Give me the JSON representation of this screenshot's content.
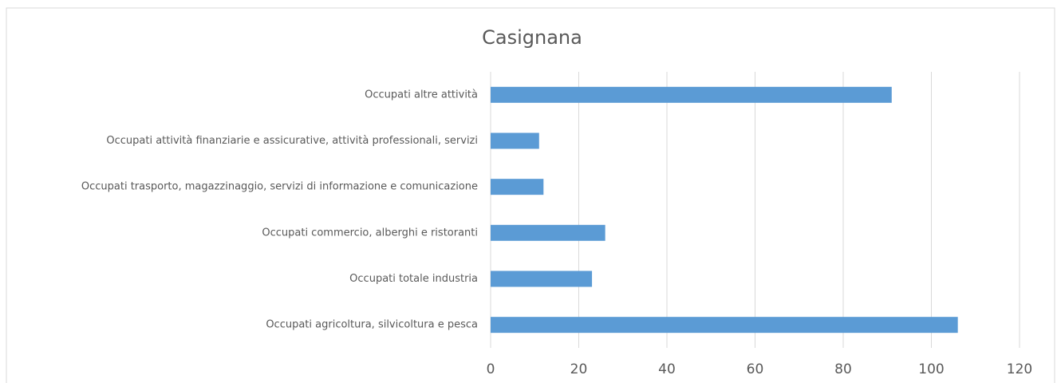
{
  "chart_data": {
    "type": "bar",
    "orientation": "horizontal",
    "title": "Casignana",
    "categories": [
      "Occupati altre attività",
      "Occupati attività finanziarie e assicurative, attività professionali, servizi",
      "Occupati trasporto, magazzinaggio, servizi di informazione e comunicazione",
      "Occupati commercio, alberghi e ristoranti",
      "Occupati totale industria",
      "Occupati agricoltura, silvicoltura e pesca"
    ],
    "values": [
      91,
      11,
      12,
      26,
      23,
      106
    ],
    "color": "#5b9bd5",
    "xlim": [
      0,
      120
    ],
    "xticks": [
      0,
      20,
      40,
      60,
      80,
      100,
      120
    ],
    "grid": true
  }
}
